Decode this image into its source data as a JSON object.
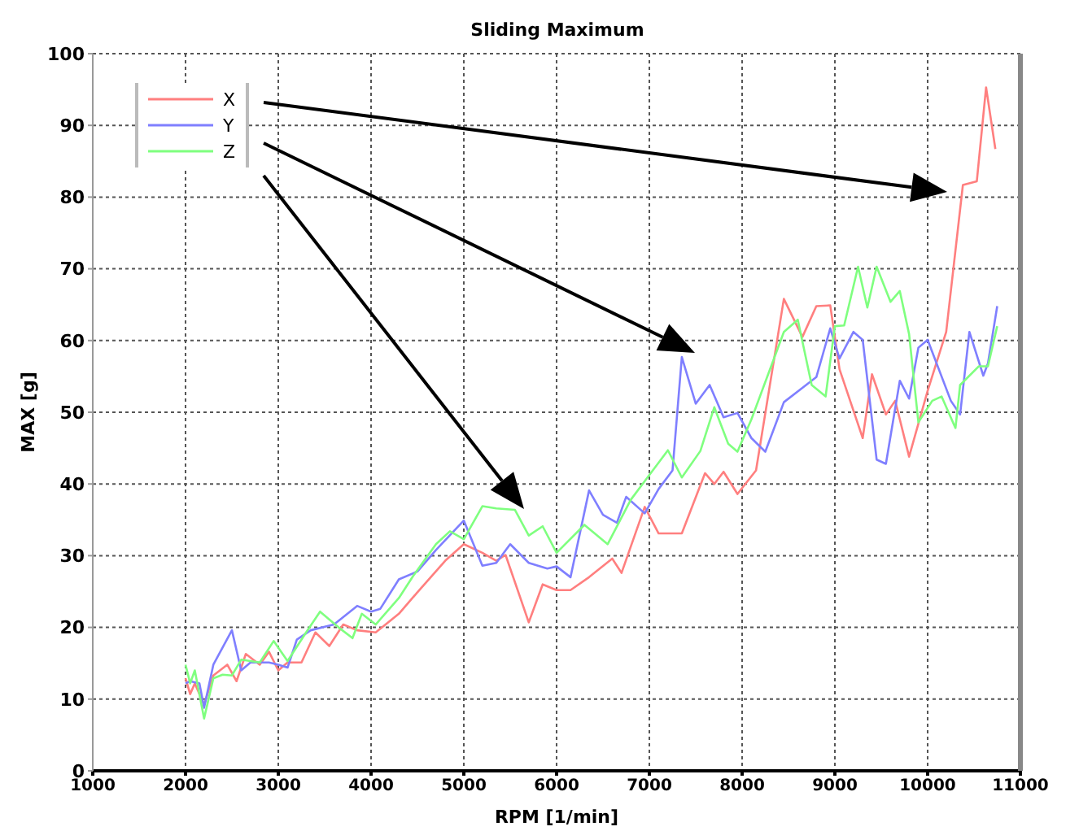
{
  "chart_data": {
    "type": "line",
    "title": "Sliding Maximum",
    "xlabel": "RPM [1/min]",
    "ylabel": "MAX [g]",
    "xlim": [
      1000,
      11000
    ],
    "xticks": [
      1000,
      2000,
      3000,
      4000,
      5000,
      6000,
      7000,
      8000,
      9000,
      10000,
      11000
    ],
    "ylim": [
      0,
      100
    ],
    "yticks": [
      0,
      10,
      20,
      30,
      40,
      50,
      60,
      70,
      80,
      90,
      100
    ],
    "grid": true,
    "legend": "top left",
    "marker": "none",
    "line_style": "solid",
    "series": [
      {
        "name": "X",
        "color": "#ff7f7f",
        "x": [
          2000,
          2050,
          2100,
          2200,
          2300,
          2450,
          2550,
          2650,
          2800,
          2900,
          3000,
          3100,
          3250,
          3400,
          3550,
          3700,
          3850,
          4050,
          4300,
          4500,
          4800,
          5000,
          5200,
          5350,
          5450,
          5700,
          5850,
          6000,
          6150,
          6350,
          6600,
          6700,
          6950,
          7100,
          7350,
          7600,
          7700,
          7800,
          7950,
          8150,
          8450,
          8650,
          8800,
          8950,
          9050,
          9300,
          9400,
          9550,
          9650,
          9800,
          10000,
          10200,
          10380,
          10530,
          10630,
          10730
        ],
        "values": [
          12.9,
          10.7,
          12.2,
          9.2,
          13.3,
          14.8,
          12.5,
          16.3,
          14.8,
          16.6,
          14,
          15.1,
          15.1,
          19.3,
          17.4,
          20.4,
          19.6,
          19.3,
          21.9,
          24.9,
          29.3,
          31.6,
          30.4,
          29.3,
          30.1,
          20.7,
          26,
          25.2,
          25.2,
          27,
          29.6,
          27.6,
          36.8,
          33.1,
          33.1,
          41.5,
          40,
          41.7,
          38.6,
          41.9,
          65.8,
          60.5,
          64.8,
          64.9,
          56,
          46.4,
          55.3,
          49.7,
          51.6,
          43.8,
          53,
          61.2,
          81.7,
          82.2,
          95.3,
          86.7
        ]
      },
      {
        "name": "Y",
        "color": "#7f7fff",
        "x": [
          2000,
          2050,
          2150,
          2200,
          2300,
          2500,
          2600,
          2700,
          2900,
          3000,
          3100,
          3200,
          3350,
          3600,
          3850,
          4000,
          4100,
          4300,
          4500,
          4700,
          5000,
          5200,
          5350,
          5500,
          5700,
          5900,
          6000,
          6150,
          6350,
          6500,
          6650,
          6750,
          6950,
          7100,
          7250,
          7350,
          7500,
          7650,
          7800,
          7950,
          8100,
          8250,
          8450,
          8650,
          8800,
          8950,
          9050,
          9200,
          9300,
          9450,
          9550,
          9700,
          9800,
          9900,
          10000,
          10250,
          10350,
          10450,
          10600,
          10650,
          10750
        ],
        "values": [
          12.2,
          12.5,
          12.2,
          8.8,
          14.8,
          19.6,
          14,
          15.1,
          15.1,
          14.8,
          14.4,
          18.3,
          19.6,
          20.4,
          23,
          22.2,
          22.6,
          26.7,
          27.8,
          30.8,
          34.9,
          28.6,
          29,
          31.6,
          29,
          28.2,
          28.5,
          27,
          39.1,
          35.7,
          34.6,
          38.2,
          35.9,
          39.3,
          41.9,
          57.7,
          51.2,
          53.8,
          49.3,
          49.9,
          46.4,
          44.5,
          51.4,
          53.4,
          54.9,
          61.7,
          57.5,
          61.2,
          60.1,
          43.4,
          42.8,
          54.4,
          51.9,
          59,
          60.1,
          51.6,
          49.7,
          61.2,
          55.1,
          56.8,
          64.8
        ]
      },
      {
        "name": "Z",
        "color": "#7fff7f",
        "x": [
          2000,
          2050,
          2100,
          2200,
          2300,
          2400,
          2500,
          2600,
          2800,
          2950,
          3100,
          3300,
          3450,
          3650,
          3800,
          3900,
          4050,
          4300,
          4450,
          4700,
          4850,
          5000,
          5200,
          5350,
          5550,
          5700,
          5850,
          6000,
          6300,
          6550,
          6800,
          6950,
          7200,
          7350,
          7550,
          7700,
          7850,
          7950,
          8100,
          8450,
          8600,
          8750,
          8900,
          9000,
          9100,
          9250,
          9350,
          9450,
          9600,
          9700,
          9800,
          9900,
          10050,
          10150,
          10300,
          10350,
          10550,
          10650,
          10750
        ],
        "values": [
          14.8,
          12.2,
          14,
          7.3,
          12.9,
          13.4,
          13.3,
          15.5,
          15.1,
          18.1,
          15.3,
          19.3,
          22.2,
          20,
          18.5,
          21.9,
          20.4,
          24.1,
          27.1,
          31.6,
          33.4,
          32.3,
          36.9,
          36.6,
          36.4,
          32.8,
          34.1,
          30.4,
          34.3,
          31.6,
          37.8,
          40.4,
          44.7,
          40.9,
          44.6,
          50.7,
          45.6,
          44.5,
          49,
          61.2,
          62.9,
          53.8,
          52.2,
          62,
          62.1,
          70.3,
          64.6,
          70.3,
          65.4,
          66.9,
          60.9,
          48.6,
          51.6,
          52.2,
          47.8,
          53.8,
          56.4,
          56.4,
          62
        ]
      }
    ]
  }
}
